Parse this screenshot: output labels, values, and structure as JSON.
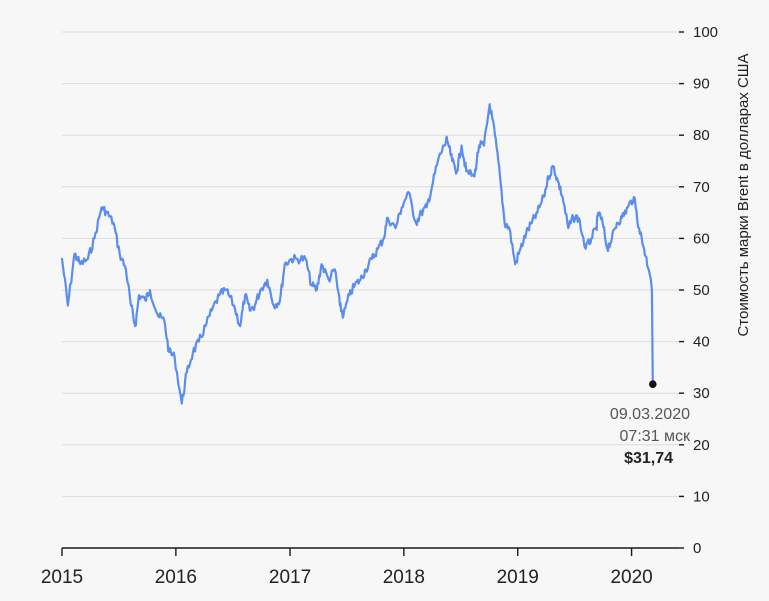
{
  "chart_data": {
    "type": "line",
    "title": "",
    "xlabel": "",
    "ylabel": "Стоимость марки Brent в долларах США",
    "ylim": [
      0,
      100
    ],
    "xlim": [
      "2015-01-01",
      "2020-06-01"
    ],
    "y_axis_position": "right",
    "grid": true,
    "y_ticks": [
      "0",
      "10",
      "20",
      "30",
      "40",
      "50",
      "60",
      "70",
      "80",
      "90",
      "100"
    ],
    "x_ticks": [
      {
        "date": "2015-01-01",
        "label": "2015"
      },
      {
        "date": "2016-01-01",
        "label": "2016"
      },
      {
        "date": "2017-01-01",
        "label": "2017"
      },
      {
        "date": "2018-01-01",
        "label": "2018"
      },
      {
        "date": "2019-01-01",
        "label": "2019"
      },
      {
        "date": "2020-01-01",
        "label": "2020"
      }
    ],
    "line_color": "#5b8def",
    "series": [
      {
        "x": [
          "2015-01-01",
          "2015-01-20",
          "2015-02-10",
          "2015-03-01",
          "2015-03-25",
          "2015-04-15",
          "2015-05-08",
          "2015-05-25",
          "2015-06-15",
          "2015-07-05",
          "2015-07-25",
          "2015-08-10",
          "2015-08-24",
          "2015-09-05",
          "2015-09-25",
          "2015-10-10",
          "2015-11-05",
          "2015-11-25",
          "2015-12-10",
          "2015-12-28",
          "2016-01-20",
          "2016-02-05",
          "2016-02-25",
          "2016-03-15",
          "2016-04-05",
          "2016-04-25",
          "2016-05-20",
          "2016-06-10",
          "2016-07-05",
          "2016-07-25",
          "2016-08-10",
          "2016-08-25",
          "2016-09-10",
          "2016-09-28",
          "2016-10-20",
          "2016-11-10",
          "2016-11-30",
          "2016-12-15",
          "2017-01-05",
          "2017-01-25",
          "2017-02-20",
          "2017-03-10",
          "2017-03-28",
          "2017-04-12",
          "2017-05-05",
          "2017-05-25",
          "2017-06-10",
          "2017-06-21",
          "2017-07-10",
          "2017-07-28",
          "2017-08-15",
          "2017-09-01",
          "2017-09-20",
          "2017-10-10",
          "2017-10-28",
          "2017-11-10",
          "2017-12-05",
          "2017-12-25",
          "2018-01-15",
          "2018-02-09",
          "2018-02-26",
          "2018-03-15",
          "2018-04-01",
          "2018-04-20",
          "2018-05-10",
          "2018-05-20",
          "2018-06-05",
          "2018-06-20",
          "2018-07-05",
          "2018-07-20",
          "2018-08-15",
          "2018-08-30",
          "2018-09-15",
          "2018-10-03",
          "2018-10-20",
          "2018-11-05",
          "2018-11-20",
          "2018-12-05",
          "2018-12-24",
          "2019-01-10",
          "2019-01-28",
          "2019-02-15",
          "2019-03-05",
          "2019-03-25",
          "2019-04-10",
          "2019-04-25",
          "2019-05-10",
          "2019-05-25",
          "2019-06-12",
          "2019-06-28",
          "2019-07-15",
          "2019-08-07",
          "2019-08-25",
          "2019-09-10",
          "2019-09-16",
          "2019-09-30",
          "2019-10-15",
          "2019-10-30",
          "2019-11-15",
          "2019-12-01",
          "2019-12-20",
          "2020-01-08",
          "2020-01-25",
          "2020-02-10",
          "2020-02-25",
          "2020-03-03",
          "2020-03-06",
          "2020-03-09"
        ],
        "y": [
          56,
          47,
          57,
          55,
          56,
          60,
          66,
          65,
          63,
          57,
          54,
          47,
          43,
          49,
          48,
          50,
          45,
          44,
          38,
          37,
          28,
          34,
          38,
          40,
          43,
          46,
          49,
          50,
          47,
          43,
          49,
          46,
          47,
          50,
          52,
          47,
          48,
          55,
          56,
          56,
          56,
          51,
          50,
          55,
          52,
          54,
          47,
          45,
          49,
          51,
          52,
          54,
          56,
          58,
          60,
          64,
          62,
          66,
          69,
          63,
          65,
          66,
          70,
          75,
          78,
          79,
          75,
          73,
          78,
          73,
          72,
          78,
          78,
          86,
          80,
          72,
          63,
          62,
          55,
          58,
          61,
          63,
          65,
          68,
          72,
          74,
          71,
          68,
          62,
          64,
          64,
          58,
          60,
          62,
          65,
          63,
          58,
          60,
          63,
          64,
          66,
          68,
          62,
          58,
          54,
          52,
          50,
          31.74
        ]
      }
    ],
    "marker": {
      "x": "2020-03-09",
      "y": 31.74
    },
    "annotation": {
      "date": "09.03.2020",
      "time": "07:31 мск",
      "price": "$31,74"
    }
  }
}
